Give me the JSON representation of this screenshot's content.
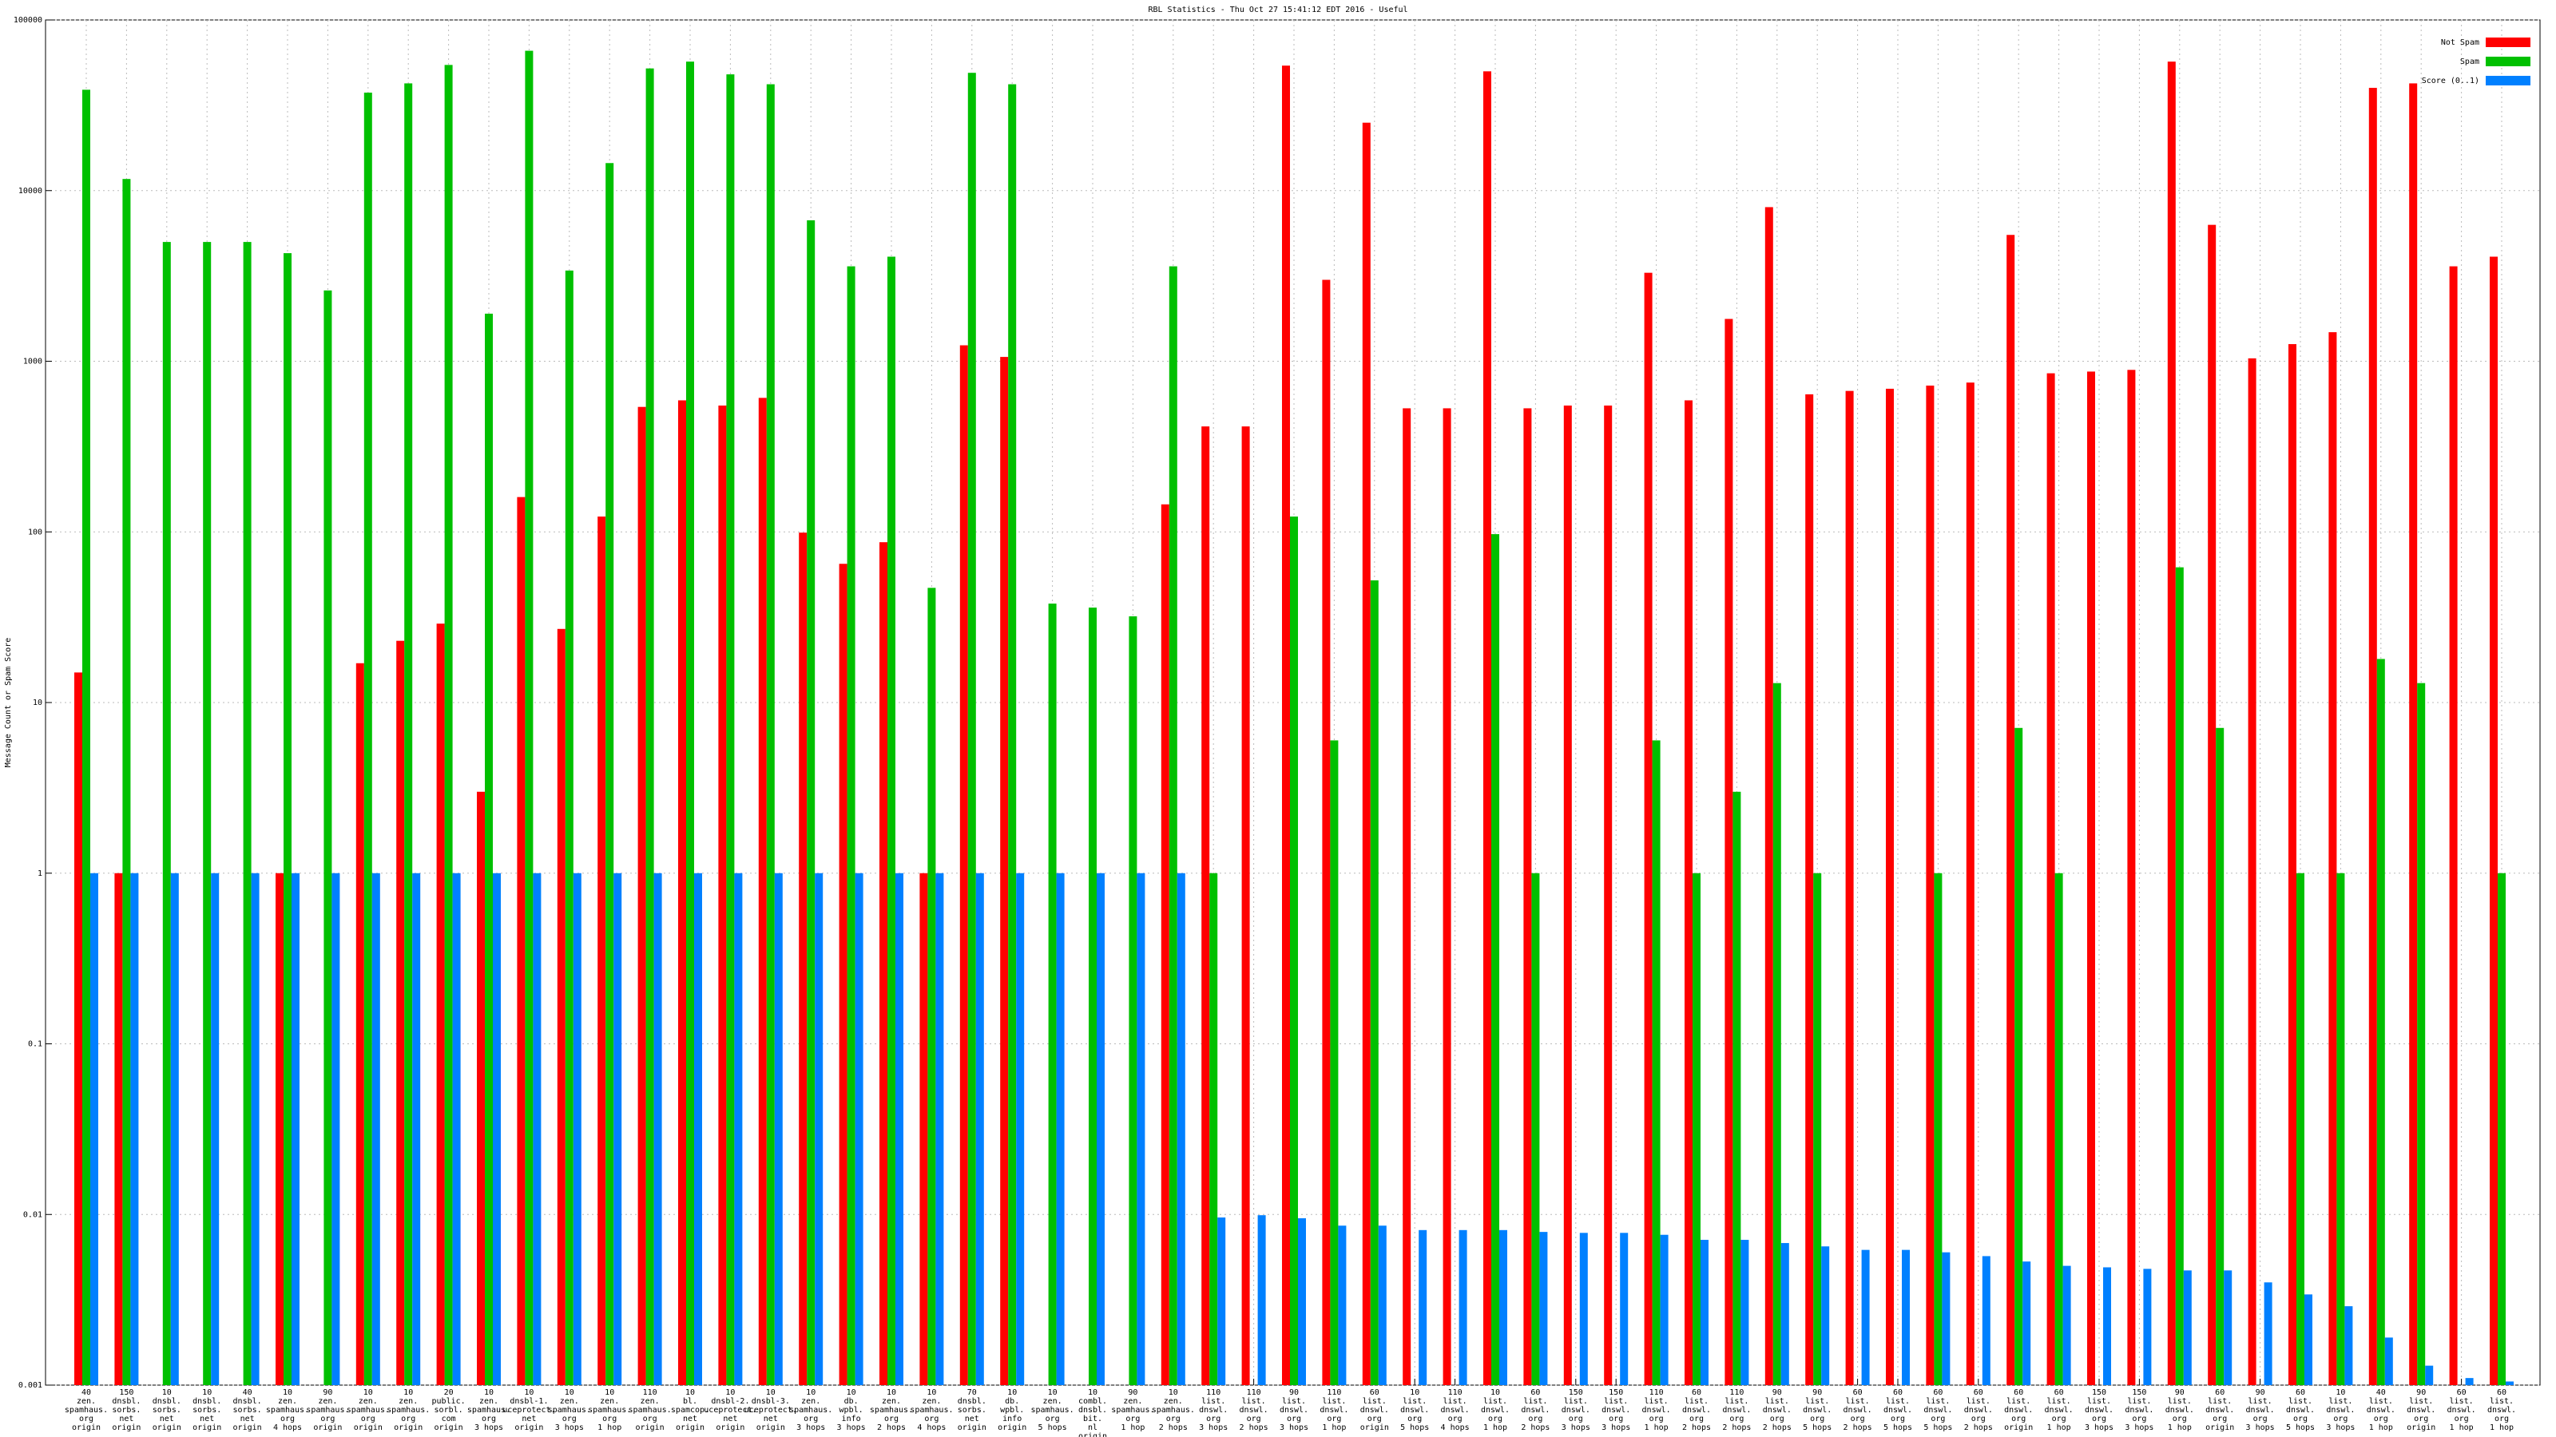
{
  "chart_data": {
    "type": "bar",
    "title": "RBL Statistics - Thu Oct 27 15:41:12 EDT 2016 - Useful",
    "y_label": "Message Count or Spam Score",
    "log_y": true,
    "grid": true,
    "legend_position": "top-right",
    "ylim": [
      0.001,
      100000
    ],
    "yticks": [
      0.001,
      0.01,
      0.1,
      1,
      10,
      100,
      1000,
      10000,
      100000
    ],
    "categories": [
      [
        "40",
        "zen.",
        "spamhaus.",
        "org",
        "origin"
      ],
      [
        "150",
        "dnsbl.",
        "sorbs.",
        "net",
        "origin"
      ],
      [
        "10",
        "dnsbl.",
        "sorbs.",
        "net",
        "origin"
      ],
      [
        "10",
        "dnsbl.",
        "sorbs.",
        "net",
        "origin"
      ],
      [
        "40",
        "dnsbl.",
        "sorbs.",
        "net",
        "origin"
      ],
      [
        "10",
        "zen.",
        "spamhaus.",
        "org",
        "4 hops"
      ],
      [
        "90",
        "zen.",
        "spamhaus.",
        "org",
        "origin"
      ],
      [
        "10",
        "zen.",
        "spamhaus.",
        "org",
        "origin"
      ],
      [
        "10",
        "zen.",
        "spamhaus.",
        "org",
        "origin"
      ],
      [
        "20",
        "public.",
        "sorbl.",
        "com",
        "origin"
      ],
      [
        "10",
        "zen.",
        "spamhaus.",
        "org",
        "3 hops"
      ],
      [
        "10",
        "dnsbl-1.",
        "uceprotect.",
        "net",
        "origin"
      ],
      [
        "10",
        "zen.",
        "spamhaus.",
        "org",
        "3 hops"
      ],
      [
        "10",
        "zen.",
        "spamhaus.",
        "org",
        "1 hop"
      ],
      [
        "110",
        "zen.",
        "spamhaus.",
        "org",
        "origin"
      ],
      [
        "10",
        "bl.",
        "spamcop.",
        "net",
        "origin"
      ],
      [
        "10",
        "dnsbl-2.",
        "uceprotect.",
        "net",
        "origin"
      ],
      [
        "10",
        "dnsbl-3.",
        "uceprotect.",
        "net",
        "origin"
      ],
      [
        "10",
        "zen.",
        "spamhaus.",
        "org",
        "3 hops"
      ],
      [
        "10",
        "db.",
        "wpbl.",
        "info",
        "3 hops"
      ],
      [
        "10",
        "zen.",
        "spamhaus.",
        "org",
        "2 hops"
      ],
      [
        "10",
        "zen.",
        "spamhaus.",
        "org",
        "4 hops"
      ],
      [
        "70",
        "dnsbl.",
        "sorbs.",
        "net",
        "origin"
      ],
      [
        "10",
        "db.",
        "wpbl.",
        "info",
        "origin"
      ],
      [
        "10",
        "zen.",
        "spamhaus.",
        "org",
        "5 hops"
      ],
      [
        "10",
        "combl.",
        "dnsbl.",
        "bit.",
        "nl",
        "origin"
      ],
      [
        "90",
        "zen.",
        "spamhaus.",
        "org",
        "1 hop"
      ],
      [
        "10",
        "zen.",
        "spamhaus.",
        "org",
        "2 hops"
      ],
      [
        "110",
        "list.",
        "dnswl.",
        "org",
        "3 hops"
      ],
      [
        "110",
        "list.",
        "dnswl.",
        "org",
        "2 hops"
      ],
      [
        "90",
        "list.",
        "dnswl.",
        "org",
        "3 hops"
      ],
      [
        "110",
        "list.",
        "dnswl.",
        "org",
        "1 hop"
      ],
      [
        "60",
        "list.",
        "dnswl.",
        "org",
        "origin"
      ],
      [
        "10",
        "list.",
        "dnswl.",
        "org",
        "5 hops"
      ],
      [
        "110",
        "list.",
        "dnswl.",
        "org",
        "4 hops"
      ],
      [
        "10",
        "list.",
        "dnswl.",
        "org",
        "1 hop"
      ],
      [
        "60",
        "list.",
        "dnswl.",
        "org",
        "2 hops"
      ],
      [
        "150",
        "list.",
        "dnswl.",
        "org",
        "3 hops"
      ],
      [
        "150",
        "list.",
        "dnswl.",
        "org",
        "3 hops"
      ],
      [
        "110",
        "list.",
        "dnswl.",
        "org",
        "1 hop"
      ],
      [
        "60",
        "list.",
        "dnswl.",
        "org",
        "2 hops"
      ],
      [
        "110",
        "list.",
        "dnswl.",
        "org",
        "2 hops"
      ],
      [
        "90",
        "list.",
        "dnswl.",
        "org",
        "2 hops"
      ],
      [
        "90",
        "list.",
        "dnswl.",
        "org",
        "5 hops"
      ],
      [
        "60",
        "list.",
        "dnswl.",
        "org",
        "2 hops"
      ],
      [
        "60",
        "list.",
        "dnswl.",
        "org",
        "5 hops"
      ],
      [
        "60",
        "list.",
        "dnswl.",
        "org",
        "5 hops"
      ],
      [
        "60",
        "list.",
        "dnswl.",
        "org",
        "2 hops"
      ],
      [
        "60",
        "list.",
        "dnswl.",
        "org",
        "origin"
      ],
      [
        "60",
        "list.",
        "dnswl.",
        "org",
        "1 hop"
      ],
      [
        "150",
        "list.",
        "dnswl.",
        "org",
        "3 hops"
      ],
      [
        "150",
        "list.",
        "dnswl.",
        "org",
        "3 hops"
      ],
      [
        "90",
        "list.",
        "dnswl.",
        "org",
        "1 hop"
      ],
      [
        "60",
        "list.",
        "dnswl.",
        "org",
        "origin"
      ],
      [
        "90",
        "list.",
        "dnswl.",
        "org",
        "3 hops"
      ],
      [
        "60",
        "list.",
        "dnswl.",
        "org",
        "5 hops"
      ],
      [
        "10",
        "list.",
        "dnswl.",
        "org",
        "3 hops"
      ],
      [
        "40",
        "list.",
        "dnswl.",
        "org",
        "1 hop"
      ],
      [
        "90",
        "list.",
        "dnswl.",
        "org",
        "origin"
      ],
      [
        "60",
        "list.",
        "dnswl.",
        "org",
        "1 hop"
      ],
      [
        "60",
        "list.",
        "dnswl.",
        "org",
        "1 hop"
      ]
    ],
    "series": [
      {
        "name": "Not Spam",
        "color": "#ff0000",
        "values": [
          15,
          1,
          null,
          null,
          null,
          1,
          null,
          17,
          23,
          29,
          3,
          160,
          27,
          123,
          540,
          590,
          550,
          610,
          99,
          65,
          87,
          1,
          1240,
          1060,
          null,
          null,
          null,
          145,
          415,
          415,
          54000,
          3000,
          25000,
          530,
          530,
          50000,
          530,
          550,
          550,
          3300,
          590,
          1770,
          8000,
          640,
          670,
          690,
          720,
          750,
          5500,
          850,
          870,
          890,
          57000,
          6300,
          1040,
          1260,
          1480,
          40000,
          42500,
          3600,
          4100
        ]
      },
      {
        "name": "Spam",
        "color": "#00c000",
        "values": [
          39000,
          11700,
          5000,
          5000,
          5000,
          4300,
          2600,
          37500,
          42500,
          54500,
          1900,
          66000,
          3400,
          14500,
          52000,
          57000,
          48000,
          42000,
          6700,
          3600,
          4100,
          47,
          49000,
          42000,
          38,
          36,
          32,
          3600,
          1,
          null,
          123,
          6,
          52,
          null,
          null,
          97,
          1,
          null,
          null,
          6,
          1,
          3,
          13,
          1,
          null,
          null,
          1,
          null,
          7.1,
          1,
          null,
          null,
          62,
          7.1,
          null,
          1,
          1,
          18,
          13,
          null,
          1
        ]
      },
      {
        "name": "Score (0..1)",
        "color": "#0080ff",
        "values": [
          1,
          1,
          1,
          1,
          1,
          1,
          1,
          1,
          1,
          1,
          1,
          1,
          1,
          1,
          1,
          1,
          1,
          1,
          1,
          1,
          1,
          1,
          1,
          1,
          1,
          1,
          1,
          1,
          0.0096,
          0.0099,
          0.0095,
          0.0086,
          0.0086,
          0.0081,
          0.0081,
          0.0081,
          0.0079,
          0.0078,
          0.0078,
          0.0076,
          0.0071,
          0.0071,
          0.0068,
          0.0065,
          0.0062,
          0.0062,
          0.006,
          0.0057,
          0.0053,
          0.005,
          0.0049,
          0.0048,
          0.0047,
          0.0047,
          0.004,
          0.0034,
          0.0029,
          0.0019,
          0.0013,
          0.0011,
          0.00105
        ]
      }
    ]
  }
}
